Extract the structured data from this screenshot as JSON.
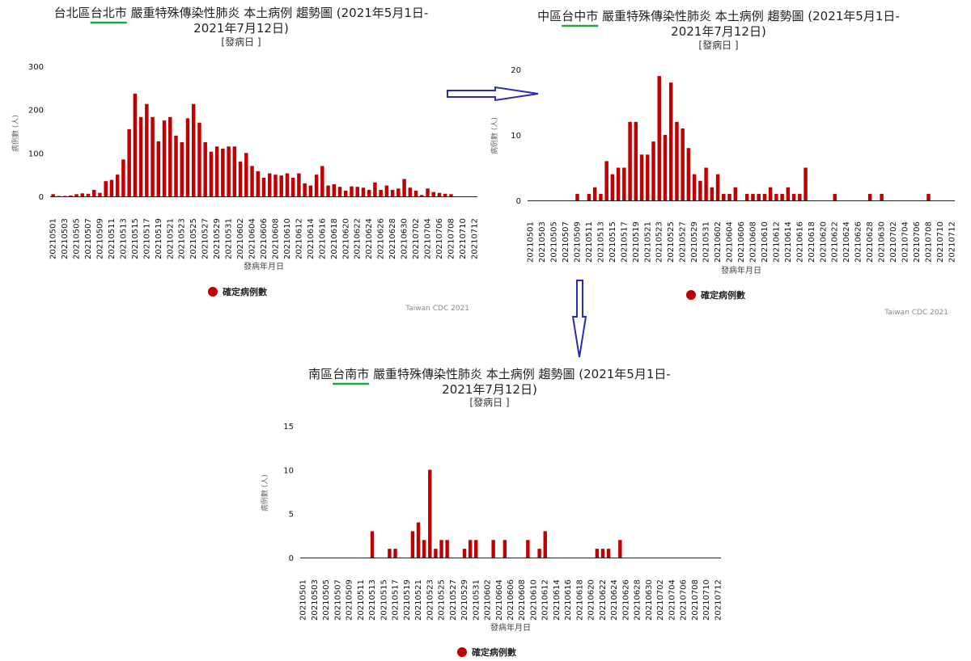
{
  "colors": {
    "bar": "#c00000",
    "underline": "#1aa83a",
    "arrow": "#2b2bb0",
    "axis": "#222222"
  },
  "chart_data": [
    {
      "type": "bar",
      "title_line1_prefix": "台北區",
      "title_line1_city": "台北市",
      "title_line1_rest": " 嚴重特殊傳染性肺炎 本土病例 趨勢圖 (2021年5月1日-",
      "title_line2": "2021年7月12日)",
      "subtitle": "[發病日 ]",
      "ylabel": "病例數 (人)",
      "xlabel": "發病年月日",
      "yticks": [
        0,
        100,
        200,
        300
      ],
      "ylim": [
        0,
        300
      ],
      "legend": "確定病例數",
      "credit": "Taiwan CDC 2021",
      "categories": [
        "20210501",
        "20210502",
        "20210503",
        "20210504",
        "20210505",
        "20210506",
        "20210507",
        "20210508",
        "20210509",
        "20210510",
        "20210511",
        "20210512",
        "20210513",
        "20210514",
        "20210515",
        "20210516",
        "20210517",
        "20210518",
        "20210519",
        "20210520",
        "20210521",
        "20210522",
        "20210523",
        "20210524",
        "20210525",
        "20210526",
        "20210527",
        "20210528",
        "20210529",
        "20210530",
        "20210531",
        "20210601",
        "20210602",
        "20210603",
        "20210604",
        "20210605",
        "20210606",
        "20210607",
        "20210608",
        "20210609",
        "20210610",
        "20210611",
        "20210612",
        "20210613",
        "20210614",
        "20210615",
        "20210616",
        "20210617",
        "20210618",
        "20210619",
        "20210620",
        "20210621",
        "20210622",
        "20210623",
        "20210624",
        "20210625",
        "20210626",
        "20210627",
        "20210628",
        "20210629",
        "20210630",
        "20210701",
        "20210702",
        "20210703",
        "20210704",
        "20210705",
        "20210706",
        "20210707",
        "20210708",
        "20210709",
        "20210710",
        "20210711",
        "20210712"
      ],
      "tick_labels": [
        "20210501",
        "20210503",
        "20210505",
        "20210507",
        "20210509",
        "20210511",
        "20210513",
        "20210515",
        "20210517",
        "20210519",
        "20210521",
        "20210523",
        "20210525",
        "20210527",
        "20210529",
        "20210531",
        "20210602",
        "20210604",
        "20210606",
        "20210608",
        "20210610",
        "20210612",
        "20210614",
        "20210616",
        "20210618",
        "20210620",
        "20210622",
        "20210624",
        "20210626",
        "20210628",
        "20210630",
        "20210702",
        "20210704",
        "20210706",
        "20210708",
        "20210710",
        "20210712"
      ],
      "values": [
        5,
        1,
        1,
        2,
        5,
        7,
        6,
        15,
        8,
        35,
        38,
        50,
        85,
        155,
        237,
        183,
        213,
        183,
        127,
        175,
        183,
        140,
        125,
        180,
        213,
        170,
        125,
        103,
        115,
        110,
        115,
        115,
        80,
        100,
        70,
        58,
        43,
        53,
        50,
        48,
        53,
        43,
        53,
        30,
        25,
        50,
        70,
        25,
        28,
        22,
        13,
        23,
        22,
        20,
        15,
        32,
        15,
        25,
        15,
        18,
        40,
        20,
        13,
        3,
        18,
        10,
        8,
        6,
        5,
        0,
        0,
        0,
        0
      ]
    },
    {
      "type": "bar",
      "title_line1_prefix": "中區",
      "title_line1_city": "台中市",
      "title_line1_rest": " 嚴重特殊傳染性肺炎 本土病例 趨勢圖 (2021年5月1日-",
      "title_line2": "2021年7月12日)",
      "subtitle": "[發病日 ]",
      "ylabel": "病例數 (人)",
      "xlabel": "發病年月日",
      "yticks": [
        0,
        10,
        20
      ],
      "ylim": [
        0,
        20
      ],
      "legend": "確定病例數",
      "credit": "Taiwan CDC 2021",
      "categories": [
        "20210501",
        "20210502",
        "20210503",
        "20210504",
        "20210505",
        "20210506",
        "20210507",
        "20210508",
        "20210509",
        "20210510",
        "20210511",
        "20210512",
        "20210513",
        "20210514",
        "20210515",
        "20210516",
        "20210517",
        "20210518",
        "20210519",
        "20210520",
        "20210521",
        "20210522",
        "20210523",
        "20210524",
        "20210525",
        "20210526",
        "20210527",
        "20210528",
        "20210529",
        "20210530",
        "20210531",
        "20210601",
        "20210602",
        "20210603",
        "20210604",
        "20210605",
        "20210606",
        "20210607",
        "20210608",
        "20210609",
        "20210610",
        "20210611",
        "20210612",
        "20210613",
        "20210614",
        "20210615",
        "20210616",
        "20210617",
        "20210618",
        "20210619",
        "20210620",
        "20210621",
        "20210622",
        "20210623",
        "20210624",
        "20210625",
        "20210626",
        "20210627",
        "20210628",
        "20210629",
        "20210630",
        "20210701",
        "20210702",
        "20210703",
        "20210704",
        "20210705",
        "20210706",
        "20210707",
        "20210708",
        "20210709",
        "20210710",
        "20210711",
        "20210712"
      ],
      "tick_labels": [
        "20210501",
        "20210503",
        "20210505",
        "20210507",
        "20210509",
        "20210511",
        "20210513",
        "20210515",
        "20210517",
        "20210519",
        "20210521",
        "20210523",
        "20210525",
        "20210527",
        "20210529",
        "20210531",
        "20210602",
        "20210604",
        "20210606",
        "20210608",
        "20210610",
        "20210612",
        "20210614",
        "20210616",
        "20210618",
        "20210620",
        "20210622",
        "20210624",
        "20210626",
        "20210628",
        "20210630",
        "20210702",
        "20210704",
        "20210706",
        "20210708",
        "20210710",
        "20210712"
      ],
      "values": [
        0,
        0,
        0,
        0,
        0,
        0,
        0,
        0,
        1,
        0,
        1,
        2,
        1,
        6,
        4,
        5,
        5,
        12,
        12,
        7,
        7,
        9,
        19,
        10,
        18,
        12,
        11,
        8,
        4,
        3,
        5,
        2,
        4,
        1,
        1,
        2,
        0,
        1,
        1,
        1,
        1,
        2,
        1,
        1,
        2,
        1,
        1,
        5,
        0,
        0,
        0,
        0,
        1,
        0,
        0,
        0,
        0,
        0,
        1,
        0,
        1,
        0,
        0,
        0,
        0,
        0,
        0,
        0,
        1,
        0,
        0,
        0,
        0
      ]
    },
    {
      "type": "bar",
      "title_line1_prefix": "南區",
      "title_line1_city": "台南市",
      "title_line1_rest": " 嚴重特殊傳染性肺炎 本土病例 趨勢圖 (2021年5月1日-",
      "title_line2": "2021年7月12日)",
      "subtitle": "[發病日 ]",
      "ylabel": "病例數 (人)",
      "xlabel": "發病年月日",
      "yticks": [
        0,
        5,
        10,
        15
      ],
      "ylim": [
        0,
        15
      ],
      "legend": "確定病例數",
      "credit": "",
      "categories": [
        "20210501",
        "20210502",
        "20210503",
        "20210504",
        "20210505",
        "20210506",
        "20210507",
        "20210508",
        "20210509",
        "20210510",
        "20210511",
        "20210512",
        "20210513",
        "20210514",
        "20210515",
        "20210516",
        "20210517",
        "20210518",
        "20210519",
        "20210520",
        "20210521",
        "20210522",
        "20210523",
        "20210524",
        "20210525",
        "20210526",
        "20210527",
        "20210528",
        "20210529",
        "20210530",
        "20210531",
        "20210601",
        "20210602",
        "20210603",
        "20210604",
        "20210605",
        "20210606",
        "20210607",
        "20210608",
        "20210609",
        "20210610",
        "20210611",
        "20210612",
        "20210613",
        "20210614",
        "20210615",
        "20210616",
        "20210617",
        "20210618",
        "20210619",
        "20210620",
        "20210621",
        "20210622",
        "20210623",
        "20210624",
        "20210625",
        "20210626",
        "20210627",
        "20210628",
        "20210629",
        "20210630",
        "20210701",
        "20210702",
        "20210703",
        "20210704",
        "20210705",
        "20210706",
        "20210707",
        "20210708",
        "20210709",
        "20210710",
        "20210711",
        "20210712"
      ],
      "tick_labels": [
        "20210501",
        "20210503",
        "20210505",
        "20210507",
        "20210509",
        "20210511",
        "20210513",
        "20210515",
        "20210517",
        "20210519",
        "20210521",
        "20210523",
        "20210525",
        "20210527",
        "20210529",
        "20210531",
        "20210602",
        "20210604",
        "20210606",
        "20210608",
        "20210610",
        "20210612",
        "20210614",
        "20210616",
        "20210618",
        "20210620",
        "20210622",
        "20210624",
        "20210626",
        "20210628",
        "20210630",
        "20210702",
        "20210704",
        "20210706",
        "20210708",
        "20210710",
        "20210712"
      ],
      "values": [
        0,
        0,
        0,
        0,
        0,
        0,
        0,
        0,
        0,
        0,
        0,
        0,
        3,
        0,
        0,
        1,
        1,
        0,
        0,
        3,
        4,
        2,
        10,
        1,
        2,
        2,
        0,
        0,
        1,
        2,
        2,
        0,
        0,
        2,
        0,
        2,
        0,
        0,
        0,
        2,
        0,
        1,
        3,
        0,
        0,
        0,
        0,
        0,
        0,
        0,
        0,
        1,
        1,
        1,
        0,
        2,
        0,
        0,
        0,
        0,
        0,
        0,
        0,
        0,
        0,
        0,
        0,
        0,
        0,
        0,
        0,
        0,
        0
      ]
    }
  ]
}
